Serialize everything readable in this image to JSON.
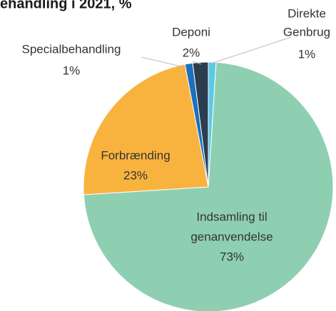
{
  "chart_data": {
    "type": "pie",
    "title": "ehandling i 2021, %",
    "categories": [
      [
        "Direkte",
        "Genbrug"
      ],
      [
        "Indsamling til",
        "genanvendelse"
      ],
      [
        "Forbrænding"
      ],
      [
        "Specialbehandling"
      ],
      [
        "Deponi"
      ]
    ],
    "values": [
      1,
      73,
      23,
      1,
      2
    ],
    "value_labels": [
      "1%",
      "73%",
      "23%",
      "1%",
      "2%"
    ],
    "colors": [
      "#5ec8e6",
      "#8fcfb1",
      "#f8b33f",
      "#1c70bd",
      "#2b3d4f"
    ]
  }
}
